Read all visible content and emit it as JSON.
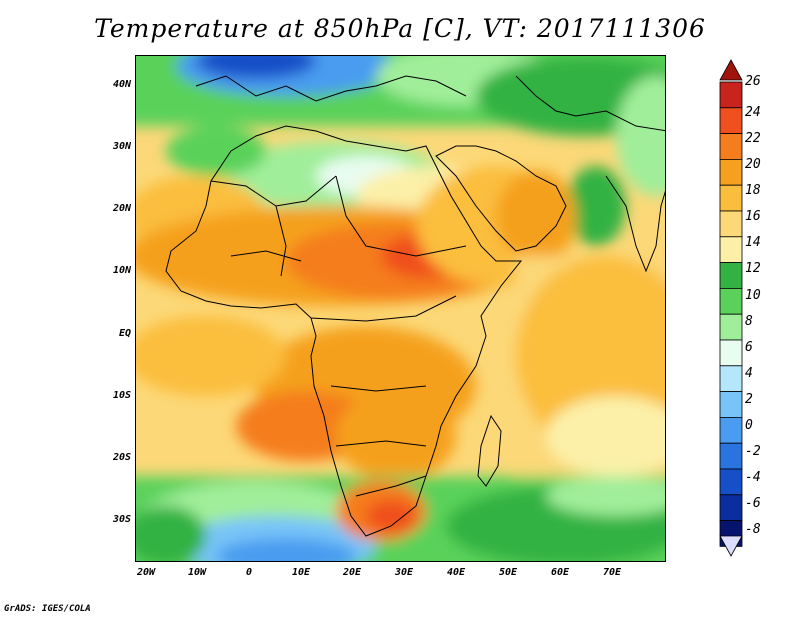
{
  "title": "Temperature at 850hPa [C], VT: 2017111306",
  "credit": "GrADS: IGES/COLA",
  "lat_labels": [
    "40N",
    "30N",
    "20N",
    "10N",
    "EQ",
    "10S",
    "20S",
    "30S"
  ],
  "lon_labels": [
    "20W",
    "10W",
    "0",
    "10E",
    "20E",
    "30E",
    "40E",
    "50E",
    "60E",
    "70E"
  ],
  "colorbar": {
    "labels": [
      "26",
      "24",
      "22",
      "20",
      "18",
      "16",
      "14",
      "12",
      "10",
      "8",
      "6",
      "4",
      "2",
      "0",
      "-2",
      "-4",
      "-6",
      "-8"
    ],
    "colors": [
      "#c8231c",
      "#f0501e",
      "#f57d1e",
      "#f5a01e",
      "#fbbe3c",
      "#fcd878",
      "#fcf0a8",
      "#33b243",
      "#5ad25a",
      "#a0ee9a",
      "#e8fcf0",
      "#b4e6fc",
      "#78c4f8",
      "#4a9cf0",
      "#2a74e0",
      "#1650c8",
      "#0a2ea0",
      "#06146e"
    ],
    "over_color": "#a0140e",
    "under_color": "#dcdcfc"
  }
}
